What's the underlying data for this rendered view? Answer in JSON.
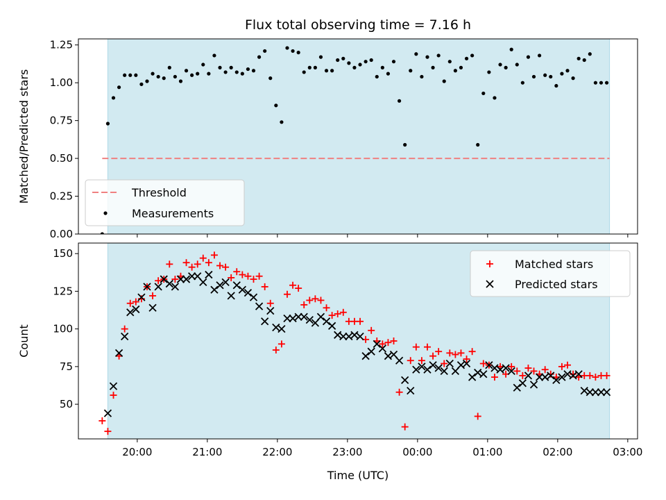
{
  "chart_data": [
    {
      "type": "scatter",
      "title": "Flux total observing time = 7.16 h",
      "ylabel": "Matched/Predicted stars",
      "xlabel": "",
      "xlim": [
        -0.42,
        7.56
      ],
      "ylim": [
        0,
        1.29
      ],
      "yticks": [
        0,
        0.25,
        0.5,
        0.75,
        1.0,
        1.25
      ],
      "ytick_labels": [
        "0.00",
        "0.25",
        "0.50",
        "0.75",
        "1.00",
        "1.25"
      ],
      "observing_window": [
        0.0,
        7.16
      ],
      "window_color": "#add8e6",
      "threshold": {
        "name": "Threshold",
        "y": 0.5,
        "x_range": [
          -0.08,
          7.16
        ],
        "color": "#f08080"
      },
      "series": [
        {
          "name": "Measurements",
          "color": "#000000",
          "x": [
            -0.08,
            0.0,
            0.08,
            0.16,
            0.24,
            0.32,
            0.4,
            0.48,
            0.56,
            0.64,
            0.72,
            0.8,
            0.88,
            0.96,
            1.04,
            1.12,
            1.2,
            1.28,
            1.36,
            1.44,
            1.52,
            1.6,
            1.68,
            1.76,
            1.84,
            1.92,
            2.0,
            2.08,
            2.16,
            2.24,
            2.32,
            2.4,
            2.48,
            2.56,
            2.64,
            2.72,
            2.8,
            2.88,
            2.96,
            3.04,
            3.12,
            3.2,
            3.28,
            3.36,
            3.44,
            3.52,
            3.6,
            3.68,
            3.76,
            3.84,
            3.92,
            4.0,
            4.08,
            4.16,
            4.24,
            4.32,
            4.4,
            4.48,
            4.56,
            4.64,
            4.72,
            4.8,
            4.88,
            4.96,
            5.04,
            5.12,
            5.2,
            5.28,
            5.36,
            5.44,
            5.52,
            5.6,
            5.68,
            5.76,
            5.84,
            5.92,
            6.0,
            6.08,
            6.16,
            6.24,
            6.32,
            6.4,
            6.48,
            6.56,
            6.64,
            6.72,
            6.8,
            6.88,
            6.96,
            7.04,
            7.12
          ],
          "y": [
            0.0,
            0.73,
            0.9,
            0.97,
            1.05,
            1.05,
            1.05,
            0.99,
            1.01,
            1.06,
            1.04,
            1.03,
            1.1,
            1.04,
            1.01,
            1.08,
            1.05,
            1.06,
            1.12,
            1.06,
            1.18,
            1.1,
            1.07,
            1.1,
            1.07,
            1.06,
            1.09,
            1.08,
            1.17,
            1.21,
            1.03,
            0.85,
            0.74,
            1.23,
            1.21,
            1.2,
            1.07,
            1.1,
            1.1,
            1.17,
            1.08,
            1.08,
            1.15,
            1.16,
            1.13,
            1.1,
            1.12,
            1.14,
            1.15,
            1.04,
            1.1,
            1.06,
            1.14,
            0.88,
            0.59,
            1.08,
            1.19,
            1.04,
            1.17,
            1.1,
            1.18,
            1.01,
            1.14,
            1.08,
            1.1,
            1.16,
            1.18,
            0.59,
            0.93,
            1.07,
            0.9,
            1.12,
            1.1,
            1.22,
            1.12,
            1.0,
            1.17,
            1.04,
            1.18,
            1.05,
            1.04,
            0.98,
            1.06,
            1.08,
            1.03,
            1.16,
            1.15,
            1.19,
            1.0,
            1.0,
            1.0
          ]
        }
      ],
      "legend": [
        "Threshold",
        "Measurements"
      ],
      "legend_position": "lower-left"
    },
    {
      "type": "scatter",
      "title": "",
      "ylabel": "Count",
      "xlabel": "Time (UTC)",
      "xlim": [
        -0.42,
        7.56
      ],
      "ylim": [
        27,
        157
      ],
      "yticks": [
        50,
        75,
        100,
        125,
        150
      ],
      "ytick_labels": [
        "50",
        "75",
        "100",
        "125",
        "150"
      ],
      "xticks": [
        0.42,
        1.42,
        2.42,
        3.42,
        4.42,
        5.42,
        6.42,
        7.42
      ],
      "xtick_labels": [
        "20:00",
        "21:00",
        "22:00",
        "23:00",
        "00:00",
        "01:00",
        "02:00",
        "03:00"
      ],
      "observing_window": [
        0.0,
        7.16
      ],
      "window_color": "#add8e6",
      "series": [
        {
          "name": "Matched stars",
          "marker": "plus",
          "color": "#ff0000",
          "x": [
            -0.08,
            0.0,
            0.08,
            0.16,
            0.24,
            0.32,
            0.4,
            0.48,
            0.56,
            0.64,
            0.72,
            0.8,
            0.88,
            0.96,
            1.04,
            1.12,
            1.2,
            1.28,
            1.36,
            1.44,
            1.52,
            1.6,
            1.68,
            1.76,
            1.84,
            1.92,
            2.0,
            2.08,
            2.16,
            2.24,
            2.32,
            2.4,
            2.48,
            2.56,
            2.64,
            2.72,
            2.8,
            2.88,
            2.96,
            3.04,
            3.12,
            3.2,
            3.28,
            3.36,
            3.44,
            3.52,
            3.6,
            3.68,
            3.76,
            3.84,
            3.92,
            4.0,
            4.08,
            4.16,
            4.24,
            4.32,
            4.4,
            4.48,
            4.56,
            4.64,
            4.72,
            4.8,
            4.88,
            4.96,
            5.04,
            5.12,
            5.2,
            5.28,
            5.36,
            5.44,
            5.52,
            5.6,
            5.68,
            5.76,
            5.84,
            5.92,
            6.0,
            6.08,
            6.16,
            6.24,
            6.32,
            6.4,
            6.48,
            6.56,
            6.64,
            6.72,
            6.8,
            6.88,
            6.96,
            7.04,
            7.12
          ],
          "y": [
            39,
            32,
            56,
            82,
            100,
            117,
            118,
            120,
            128,
            122,
            132,
            133,
            143,
            133,
            135,
            144,
            141,
            143,
            147,
            144,
            149,
            142,
            141,
            134,
            138,
            136,
            135,
            133,
            135,
            128,
            117,
            86,
            90,
            123,
            129,
            127,
            116,
            119,
            120,
            119,
            114,
            109,
            110,
            111,
            105,
            105,
            105,
            93,
            99,
            92,
            90,
            91,
            92,
            58,
            35,
            79,
            88,
            79,
            88,
            82,
            85,
            77,
            84,
            83,
            84,
            80,
            85,
            42,
            77,
            76,
            68,
            75,
            70,
            75,
            72,
            69,
            74,
            72,
            70,
            73,
            70,
            68,
            75,
            76,
            70,
            68,
            69,
            69,
            68,
            69,
            69
          ],
          "note_x": "offset hours from start of observing window (19:35 UTC)"
        },
        {
          "name": "Predicted stars",
          "marker": "x",
          "color": "#000000",
          "x": [
            0.0,
            0.08,
            0.16,
            0.24,
            0.32,
            0.4,
            0.48,
            0.56,
            0.64,
            0.72,
            0.8,
            0.88,
            0.96,
            1.04,
            1.12,
            1.2,
            1.28,
            1.36,
            1.44,
            1.52,
            1.6,
            1.68,
            1.76,
            1.84,
            1.92,
            2.0,
            2.08,
            2.16,
            2.24,
            2.32,
            2.4,
            2.48,
            2.56,
            2.64,
            2.72,
            2.8,
            2.88,
            2.96,
            3.04,
            3.12,
            3.2,
            3.28,
            3.36,
            3.44,
            3.52,
            3.6,
            3.68,
            3.76,
            3.84,
            3.92,
            4.0,
            4.08,
            4.16,
            4.24,
            4.32,
            4.4,
            4.48,
            4.56,
            4.64,
            4.72,
            4.8,
            4.88,
            4.96,
            5.04,
            5.12,
            5.2,
            5.28,
            5.36,
            5.44,
            5.52,
            5.6,
            5.68,
            5.76,
            5.84,
            5.92,
            6.0,
            6.08,
            6.16,
            6.24,
            6.32,
            6.4,
            6.48,
            6.56,
            6.64,
            6.72,
            6.8,
            6.88,
            6.96,
            7.04,
            7.12
          ],
          "y": [
            44,
            62,
            84,
            95,
            111,
            113,
            121,
            128,
            114,
            128,
            133,
            130,
            128,
            133,
            133,
            135,
            135,
            131,
            136,
            126,
            129,
            131,
            122,
            129,
            126,
            124,
            121,
            115,
            105,
            112,
            101,
            100,
            107,
            107,
            108,
            108,
            106,
            104,
            108,
            105,
            102,
            96,
            95,
            95,
            96,
            95,
            82,
            85,
            90,
            87,
            82,
            83,
            79,
            66,
            59,
            73,
            75,
            73,
            76,
            74,
            72,
            77,
            72,
            76,
            77,
            68,
            71,
            70,
            76,
            74,
            73,
            74,
            72,
            61,
            64,
            69,
            63,
            68,
            68,
            69,
            66,
            68,
            70,
            69,
            70,
            59,
            58,
            58,
            58,
            58
          ],
          "note_x": "offset hours from start of observing window (19:35 UTC)"
        }
      ],
      "legend": [
        "Matched stars",
        "Predicted stars"
      ],
      "legend_position": "upper-right"
    }
  ]
}
